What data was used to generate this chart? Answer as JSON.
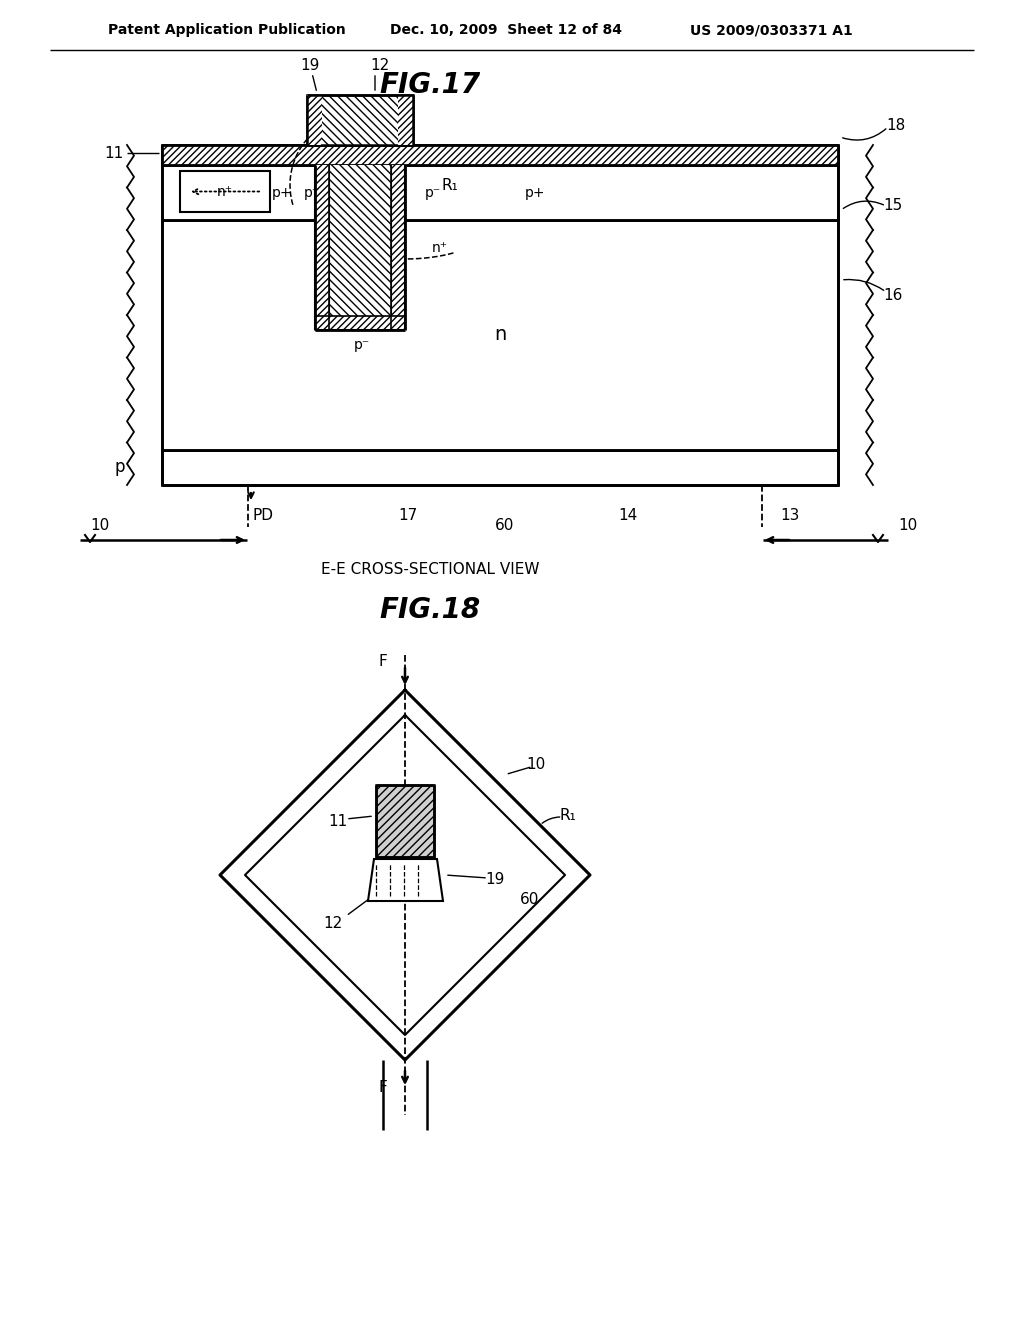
{
  "header_left": "Patent Application Publication",
  "header_mid": "Dec. 10, 2009  Sheet 12 of 84",
  "header_right": "US 2009/0303371 A1",
  "fig17_title": "FIG.17",
  "fig18_title": "FIG.18",
  "caption": "E-E CROSS-SECTIONAL VIEW",
  "bg_color": "#ffffff"
}
